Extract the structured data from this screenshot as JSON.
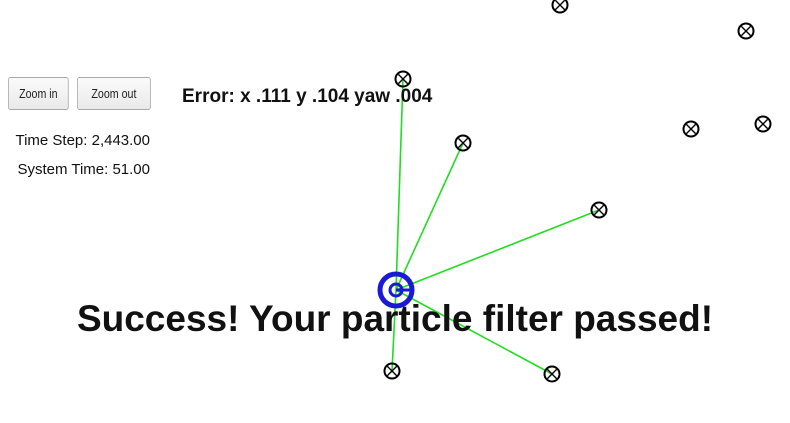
{
  "controls": {
    "zoom_in_label": "Zoom in",
    "zoom_out_label": "Zoom out"
  },
  "status": {
    "error_text": "Error: x .111 y .104 yaw .004",
    "time_step_text": "Time Step: 2,443.00",
    "system_time_text": "System Time: 51.00"
  },
  "message": {
    "success_text": "Success! Your particle filter passed!"
  },
  "colors": {
    "observation_line": "#22dd22",
    "vehicle": "#1a1ad6",
    "landmark": "#000000"
  },
  "icons": {
    "landmark": "landmark-marker-icon",
    "vehicle": "vehicle-marker-icon"
  }
}
